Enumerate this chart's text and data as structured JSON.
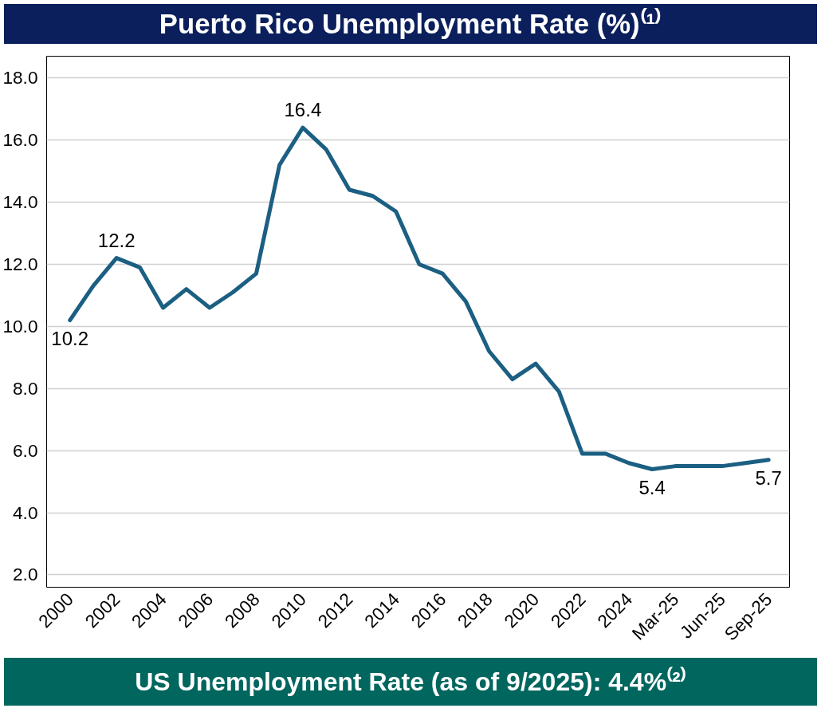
{
  "chart_data": {
    "type": "line",
    "title": "Puerto Rico Unemployment Rate (%)⁽¹⁾",
    "categories": [
      "2000",
      null,
      "2002",
      null,
      "2004",
      null,
      "2006",
      null,
      "2008",
      null,
      "2010",
      null,
      "2012",
      null,
      "2014",
      null,
      "2016",
      null,
      "2018",
      null,
      "2020",
      null,
      "2022",
      null,
      "2024",
      null,
      "Mar-25",
      null,
      "Jun-25",
      null,
      "Sep-25"
    ],
    "series": [
      {
        "color": "#1b5f82",
        "values": [
          10.2,
          11.3,
          12.2,
          11.9,
          10.6,
          11.2,
          10.6,
          11.1,
          11.7,
          15.2,
          16.4,
          15.7,
          14.4,
          14.2,
          13.7,
          12.0,
          11.7,
          10.8,
          9.2,
          8.3,
          8.8,
          7.9,
          5.9,
          5.9,
          5.6,
          5.4,
          5.5,
          5.5,
          5.5,
          5.6,
          5.7
        ],
        "value_labels": [
          "10.2",
          null,
          "12.2",
          null,
          null,
          null,
          null,
          null,
          null,
          null,
          "16.4",
          null,
          null,
          null,
          null,
          null,
          null,
          null,
          null,
          null,
          null,
          null,
          null,
          null,
          null,
          "5.4",
          null,
          null,
          null,
          null,
          "5.7"
        ]
      }
    ],
    "ylim": [
      1.6,
      18.7
    ],
    "yticks": [
      {
        "value": 2,
        "label": "2.0"
      },
      {
        "value": 4,
        "label": "4.0"
      },
      {
        "value": 6,
        "label": "6.0"
      },
      {
        "value": 8,
        "label": "8.0"
      },
      {
        "value": 10,
        "label": "10.0"
      },
      {
        "value": 12,
        "label": "12.0"
      },
      {
        "value": 14,
        "label": "14.0"
      },
      {
        "value": 16,
        "label": "16.0"
      },
      {
        "value": 18,
        "label": "18.0"
      }
    ],
    "grid": "y",
    "marker": "none",
    "line_style": "solid",
    "annotations": [
      "US Unemployment Rate (as of 9/2025): 4.4%⁽²⁾"
    ]
  }
}
